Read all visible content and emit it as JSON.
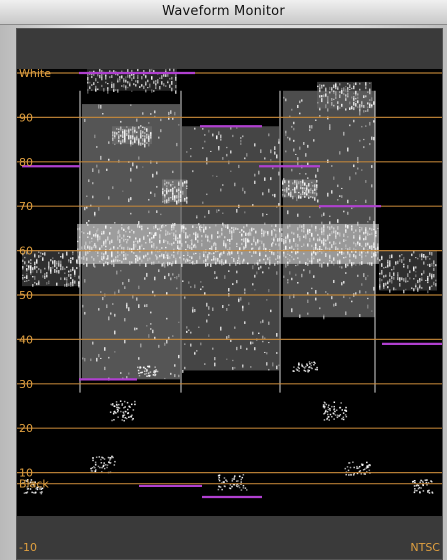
{
  "window": {
    "title": "Waveform Monitor"
  },
  "scale": {
    "labels": [
      "White",
      "90",
      "80",
      "70",
      "60",
      "50",
      "40",
      "30",
      "20",
      "10",
      "Black",
      "-10"
    ],
    "ire_values": [
      100,
      90,
      80,
      70,
      60,
      50,
      40,
      30,
      20,
      10,
      7.5,
      -10
    ],
    "standard": "NTSC"
  },
  "colors": {
    "graticule": "#c88a3a",
    "label": "#e0a040",
    "marker": "#b040d0",
    "trace": "#ffffff",
    "background": "#000000",
    "band": "#3a3a3a"
  }
}
